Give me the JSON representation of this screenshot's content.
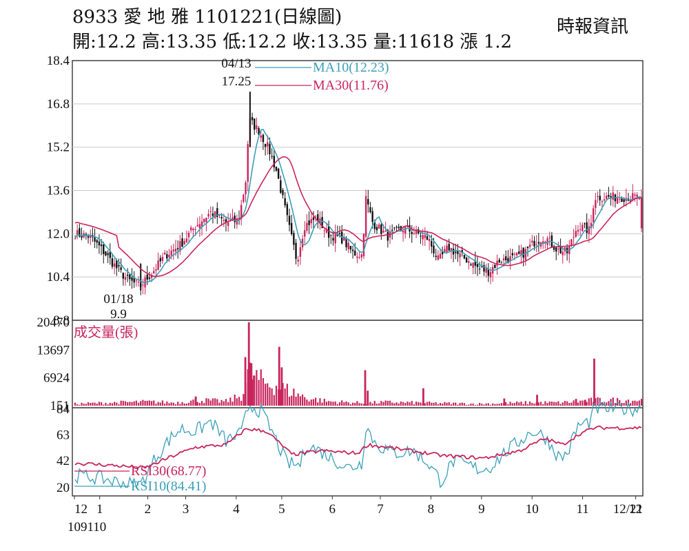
{
  "header": {
    "line1": "8933  愛 地 雅 1101221(日線圖)",
    "line2": "開:12.2 高:13.35 低:12.2 收:13.35 量:11618 漲 1.2",
    "source": "時報資訊"
  },
  "chart_data": [
    {
      "type": "candlestick",
      "panel": "price",
      "ylim": [
        8.8,
        18.4
      ],
      "yticks": [
        "18.4",
        "16.8",
        "15.2",
        "13.6",
        "12.0",
        "10.4",
        "8.8"
      ],
      "annotations": [
        {
          "date": "04/13",
          "value": "17.25",
          "label": "04/13"
        },
        {
          "date": "01/18",
          "value": "9.9",
          "label": "01/18"
        }
      ],
      "legend": [
        {
          "name": "MA10(12.23)",
          "color": "#3a9fb8"
        },
        {
          "name": "MA30(11.76)",
          "color": "#c8245c"
        }
      ],
      "up_color": "#c8245c",
      "down_color": "#111111",
      "close_anchors": [
        {
          "m": 0,
          "v": 12.0
        },
        {
          "m": 0.3,
          "v": 11.9
        },
        {
          "m": 0.55,
          "v": 11.4
        },
        {
          "m": 0.85,
          "v": 10.7
        },
        {
          "m": 1.05,
          "v": 10.3
        },
        {
          "m": 1.3,
          "v": 10.05
        },
        {
          "m": 1.55,
          "v": 10.6
        },
        {
          "m": 1.8,
          "v": 11.2
        },
        {
          "m": 2.1,
          "v": 11.6
        },
        {
          "m": 2.4,
          "v": 12.3
        },
        {
          "m": 2.7,
          "v": 12.8
        },
        {
          "m": 3.0,
          "v": 12.4
        },
        {
          "m": 3.25,
          "v": 12.5
        },
        {
          "m": 3.4,
          "v": 14.1
        },
        {
          "m": 3.45,
          "v": 16.2
        },
        {
          "m": 3.65,
          "v": 15.8
        },
        {
          "m": 3.85,
          "v": 15.1
        },
        {
          "m": 4.0,
          "v": 14.3
        },
        {
          "m": 4.25,
          "v": 12.2
        },
        {
          "m": 4.4,
          "v": 11.0
        },
        {
          "m": 4.55,
          "v": 12.3
        },
        {
          "m": 4.8,
          "v": 12.6
        },
        {
          "m": 5.0,
          "v": 12.0
        },
        {
          "m": 5.3,
          "v": 11.8
        },
        {
          "m": 5.5,
          "v": 11.3
        },
        {
          "m": 5.7,
          "v": 11.2
        },
        {
          "m": 5.75,
          "v": 13.4
        },
        {
          "m": 5.9,
          "v": 12.4
        },
        {
          "m": 6.2,
          "v": 11.9
        },
        {
          "m": 6.5,
          "v": 12.2
        },
        {
          "m": 6.8,
          "v": 12.0
        },
        {
          "m": 7.0,
          "v": 11.8
        },
        {
          "m": 7.2,
          "v": 11.0
        },
        {
          "m": 7.4,
          "v": 11.5
        },
        {
          "m": 7.6,
          "v": 11.2
        },
        {
          "m": 7.8,
          "v": 11.0
        },
        {
          "m": 8.0,
          "v": 10.7
        },
        {
          "m": 8.2,
          "v": 10.6
        },
        {
          "m": 8.4,
          "v": 11.0
        },
        {
          "m": 8.7,
          "v": 11.1
        },
        {
          "m": 8.9,
          "v": 11.3
        },
        {
          "m": 9.1,
          "v": 11.7
        },
        {
          "m": 9.3,
          "v": 11.9
        },
        {
          "m": 9.55,
          "v": 11.4
        },
        {
          "m": 9.75,
          "v": 11.3
        },
        {
          "m": 9.95,
          "v": 12.3
        },
        {
          "m": 10.2,
          "v": 12.1
        },
        {
          "m": 10.28,
          "v": 13.35
        }
      ],
      "volume_anchors": [
        {
          "m": 0,
          "v": 600
        },
        {
          "m": 0.8,
          "v": 900
        },
        {
          "m": 1.4,
          "v": 1100
        },
        {
          "m": 2.0,
          "v": 900
        },
        {
          "m": 2.45,
          "v": 1500
        },
        {
          "m": 3.0,
          "v": 1200
        },
        {
          "m": 3.3,
          "v": 2500
        },
        {
          "m": 3.45,
          "v": 8000
        },
        {
          "m": 3.7,
          "v": 6000
        },
        {
          "m": 4.0,
          "v": 5000
        },
        {
          "m": 4.3,
          "v": 3500
        },
        {
          "m": 4.6,
          "v": 2000
        },
        {
          "m": 5.0,
          "v": 1200
        },
        {
          "m": 5.7,
          "v": 800
        },
        {
          "m": 6.2,
          "v": 1000
        },
        {
          "m": 7.0,
          "v": 800
        },
        {
          "m": 8.0,
          "v": 600
        },
        {
          "m": 9.0,
          "v": 900
        },
        {
          "m": 9.6,
          "v": 900
        },
        {
          "m": 10.0,
          "v": 1200
        },
        {
          "m": 10.28,
          "v": 1500
        }
      ],
      "volume_spikes": [
        {
          "m": 3.45,
          "v": 20470
        },
        {
          "m": 3.5,
          "v": 10500
        },
        {
          "m": 3.38,
          "v": 12000
        },
        {
          "m": 3.55,
          "v": 7500
        },
        {
          "m": 4.05,
          "v": 14500
        },
        {
          "m": 4.1,
          "v": 9500
        },
        {
          "m": 5.75,
          "v": 8800
        },
        {
          "m": 5.8,
          "v": 3800
        },
        {
          "m": 6.9,
          "v": 4400
        },
        {
          "m": 10.28,
          "v": 11618
        },
        {
          "m": 9.15,
          "v": 2800
        },
        {
          "m": 2.4,
          "v": 2400
        },
        {
          "m": 8.5,
          "v": 1900
        },
        {
          "m": 9.92,
          "v": 1800
        },
        {
          "m": 10.1,
          "v": 1600
        }
      ],
      "rsi_anchors": [
        {
          "m": 0,
          "v": 30
        },
        {
          "m": 0.5,
          "v": 28
        },
        {
          "m": 0.9,
          "v": 24
        },
        {
          "m": 1.3,
          "v": 22
        },
        {
          "m": 1.6,
          "v": 44
        },
        {
          "m": 1.85,
          "v": 58
        },
        {
          "m": 2.1,
          "v": 68
        },
        {
          "m": 2.4,
          "v": 66
        },
        {
          "m": 2.7,
          "v": 74
        },
        {
          "m": 3.0,
          "v": 58
        },
        {
          "m": 3.3,
          "v": 64
        },
        {
          "m": 3.45,
          "v": 88
        },
        {
          "m": 3.7,
          "v": 82
        },
        {
          "m": 3.95,
          "v": 62
        },
        {
          "m": 4.2,
          "v": 40
        },
        {
          "m": 4.45,
          "v": 38
        },
        {
          "m": 4.6,
          "v": 55
        },
        {
          "m": 4.85,
          "v": 50
        },
        {
          "m": 5.1,
          "v": 44
        },
        {
          "m": 5.4,
          "v": 36
        },
        {
          "m": 5.7,
          "v": 40
        },
        {
          "m": 5.75,
          "v": 72
        },
        {
          "m": 5.95,
          "v": 56
        },
        {
          "m": 6.3,
          "v": 48
        },
        {
          "m": 6.7,
          "v": 50
        },
        {
          "m": 7.0,
          "v": 40
        },
        {
          "m": 7.25,
          "v": 25
        },
        {
          "m": 7.5,
          "v": 42
        },
        {
          "m": 7.8,
          "v": 38
        },
        {
          "m": 8.0,
          "v": 35
        },
        {
          "m": 8.2,
          "v": 36
        },
        {
          "m": 8.5,
          "v": 48
        },
        {
          "m": 8.8,
          "v": 58
        },
        {
          "m": 9.05,
          "v": 66
        },
        {
          "m": 9.3,
          "v": 62
        },
        {
          "m": 9.6,
          "v": 44
        },
        {
          "m": 9.75,
          "v": 48
        },
        {
          "m": 9.95,
          "v": 70
        },
        {
          "m": 10.2,
          "v": 74
        },
        {
          "m": 10.28,
          "v": 84.41
        }
      ],
      "rsi30_anchors": [
        {
          "m": 0,
          "v": 40
        },
        {
          "m": 0.8,
          "v": 38
        },
        {
          "m": 1.4,
          "v": 36
        },
        {
          "m": 1.9,
          "v": 45
        },
        {
          "m": 2.4,
          "v": 53
        },
        {
          "m": 3.0,
          "v": 55
        },
        {
          "m": 3.4,
          "v": 68
        },
        {
          "m": 3.8,
          "v": 66
        },
        {
          "m": 4.3,
          "v": 47
        },
        {
          "m": 4.9,
          "v": 50
        },
        {
          "m": 5.6,
          "v": 48
        },
        {
          "m": 5.8,
          "v": 55
        },
        {
          "m": 6.5,
          "v": 51
        },
        {
          "m": 7.3,
          "v": 46
        },
        {
          "m": 8.1,
          "v": 44
        },
        {
          "m": 8.8,
          "v": 50
        },
        {
          "m": 9.3,
          "v": 60
        },
        {
          "m": 9.65,
          "v": 55
        },
        {
          "m": 10.0,
          "v": 64
        },
        {
          "m": 10.28,
          "v": 68.77
        }
      ],
      "month_labels": [
        {
          "m": 0,
          "label": "12"
        },
        {
          "m": 0.5,
          "label": "1"
        },
        {
          "m": 1.45,
          "label": "2"
        },
        {
          "m": 2.2,
          "label": "3"
        },
        {
          "m": 3.2,
          "label": "4"
        },
        {
          "m": 4.1,
          "label": "5"
        },
        {
          "m": 5.1,
          "label": "6"
        },
        {
          "m": 6.05,
          "label": "7"
        },
        {
          "m": 7.05,
          "label": "8"
        },
        {
          "m": 8.05,
          "label": "9"
        },
        {
          "m": 9.05,
          "label": "10"
        },
        {
          "m": 10.05,
          "label": "11"
        },
        {
          "m": 11.1,
          "label": "12"
        }
      ],
      "x_end_label": "12/21",
      "x_start_label": "109110"
    },
    {
      "type": "bar",
      "panel": "volume",
      "title": "成交量(張)",
      "ylim": [
        151,
        20470
      ],
      "yticks": [
        "20470",
        "13697",
        "6924",
        "151"
      ],
      "color": "#c8245c"
    },
    {
      "type": "line",
      "panel": "rsi",
      "ylim": [
        20,
        84
      ],
      "yticks": [
        "84",
        "63",
        "42",
        "20"
      ],
      "legend": [
        {
          "name": "RSI30(68.77)",
          "color": "#c8245c"
        },
        {
          "name": "RSI10(84.41)",
          "color": "#3a9fb8"
        }
      ]
    }
  ]
}
